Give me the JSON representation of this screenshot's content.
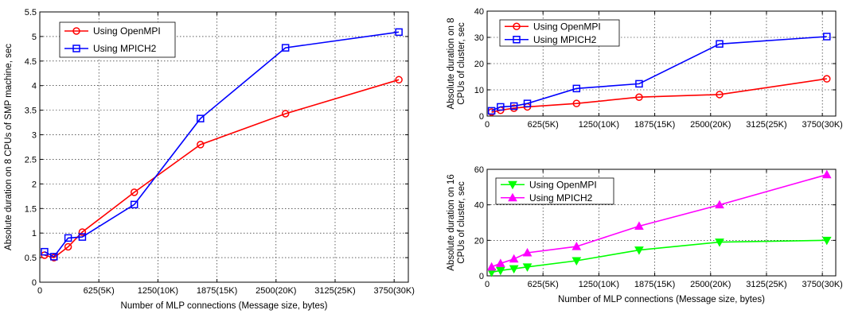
{
  "chart_data": [
    {
      "type": "line",
      "xlabel": "Number of MLP connections (Message size, bytes)",
      "ylabel": "Absolute duration on 8 CPUs of SMP machine, sec",
      "xlim": [
        0,
        3900
      ],
      "ylim": [
        0,
        5.5
      ],
      "xticks": [
        {
          "v": 0,
          "label": "0"
        },
        {
          "v": 625,
          "label": "625(5K)"
        },
        {
          "v": 1250,
          "label": "1250(10K)"
        },
        {
          "v": 1875,
          "label": "1875(15K)"
        },
        {
          "v": 2500,
          "label": "2500(20K)"
        },
        {
          "v": 3125,
          "label": "3125(25K)"
        },
        {
          "v": 3750,
          "label": "3750(30K)"
        }
      ],
      "yticks": [
        {
          "v": 0,
          "label": "0"
        },
        {
          "v": 0.5,
          "label": "0.5"
        },
        {
          "v": 1,
          "label": "1"
        },
        {
          "v": 1.5,
          "label": "1.5"
        },
        {
          "v": 2,
          "label": "2"
        },
        {
          "v": 2.5,
          "label": "2.5"
        },
        {
          "v": 3,
          "label": "3"
        },
        {
          "v": 3.5,
          "label": "3.5"
        },
        {
          "v": 4,
          "label": "4"
        },
        {
          "v": 4.5,
          "label": "4.5"
        },
        {
          "v": 5,
          "label": "5"
        },
        {
          "v": 5.5,
          "label": "5.5"
        }
      ],
      "grid": true,
      "legend": "top-left",
      "series": [
        {
          "name": "Using OpenMPI",
          "color": "#ff0000",
          "marker": "circle",
          "x": [
            50,
            150,
            300,
            450,
            1000,
            1700,
            2600,
            3800
          ],
          "y": [
            0.55,
            0.5,
            0.72,
            1.02,
            1.83,
            2.8,
            3.43,
            4.12
          ]
        },
        {
          "name": "Using MPICH2",
          "color": "#0000ff",
          "marker": "square",
          "x": [
            50,
            150,
            300,
            450,
            1000,
            1700,
            2600,
            3800
          ],
          "y": [
            0.62,
            0.52,
            0.9,
            0.92,
            1.58,
            3.33,
            4.77,
            5.09
          ]
        }
      ]
    },
    {
      "type": "line",
      "xlabel": "",
      "ylabel": "Absolute duration on 8 CPUs of cluster, sec",
      "xlim": [
        0,
        3900
      ],
      "ylim": [
        0,
        40
      ],
      "xticks": [
        {
          "v": 0,
          "label": "0"
        },
        {
          "v": 625,
          "label": "625(5K)"
        },
        {
          "v": 1250,
          "label": "1250(10K)"
        },
        {
          "v": 1875,
          "label": "1875(15K)"
        },
        {
          "v": 2500,
          "label": "2500(20K)"
        },
        {
          "v": 3125,
          "label": "3125(25K)"
        },
        {
          "v": 3750,
          "label": "3750(30K)"
        }
      ],
      "yticks": [
        {
          "v": 0,
          "label": "0"
        },
        {
          "v": 10,
          "label": "10"
        },
        {
          "v": 20,
          "label": "20"
        },
        {
          "v": 30,
          "label": "30"
        },
        {
          "v": 40,
          "label": "40"
        }
      ],
      "grid": true,
      "legend": "top-left",
      "series": [
        {
          "name": "Using OpenMPI",
          "color": "#ff0000",
          "marker": "circle",
          "x": [
            50,
            150,
            300,
            450,
            1000,
            1700,
            2600,
            3800
          ],
          "y": [
            1.5,
            2.2,
            3.0,
            3.5,
            4.8,
            7.2,
            8.2,
            14.2
          ]
        },
        {
          "name": "Using MPICH2",
          "color": "#0000ff",
          "marker": "square",
          "x": [
            50,
            150,
            300,
            450,
            1000,
            1700,
            2600,
            3800
          ],
          "y": [
            2.0,
            3.5,
            3.8,
            4.8,
            10.5,
            12.3,
            27.5,
            30.3
          ]
        }
      ]
    },
    {
      "type": "line",
      "xlabel": "Number of MLP connections (Message size, bytes)",
      "ylabel": "Absolute duration on 16 CPUs of cluster, sec",
      "xlim": [
        0,
        3900
      ],
      "ylim": [
        0,
        60
      ],
      "xticks": [
        {
          "v": 0,
          "label": "0"
        },
        {
          "v": 625,
          "label": "625(5K)"
        },
        {
          "v": 1250,
          "label": "1250(10K)"
        },
        {
          "v": 1875,
          "label": "1875(15K)"
        },
        {
          "v": 2500,
          "label": "2500(20K)"
        },
        {
          "v": 3125,
          "label": "3125(25K)"
        },
        {
          "v": 3750,
          "label": "3750(30K)"
        }
      ],
      "yticks": [
        {
          "v": 0,
          "label": "0"
        },
        {
          "v": 20,
          "label": "20"
        },
        {
          "v": 40,
          "label": "40"
        },
        {
          "v": 60,
          "label": "60"
        }
      ],
      "grid": true,
      "legend": "top-left",
      "series": [
        {
          "name": "Using OpenMPI",
          "color": "#00ff00",
          "marker": "triangle-down",
          "x": [
            50,
            150,
            300,
            450,
            1000,
            1700,
            2600,
            3800
          ],
          "y": [
            2.0,
            3.0,
            4.0,
            5.0,
            8.5,
            14.5,
            19.0,
            20.0
          ]
        },
        {
          "name": "Using MPICH2",
          "color": "#ff00ff",
          "marker": "triangle-up",
          "x": [
            50,
            150,
            300,
            450,
            1000,
            1700,
            2600,
            3800
          ],
          "y": [
            5.0,
            7.0,
            9.5,
            13.0,
            16.5,
            28.0,
            40.0,
            57.0
          ]
        }
      ]
    }
  ]
}
